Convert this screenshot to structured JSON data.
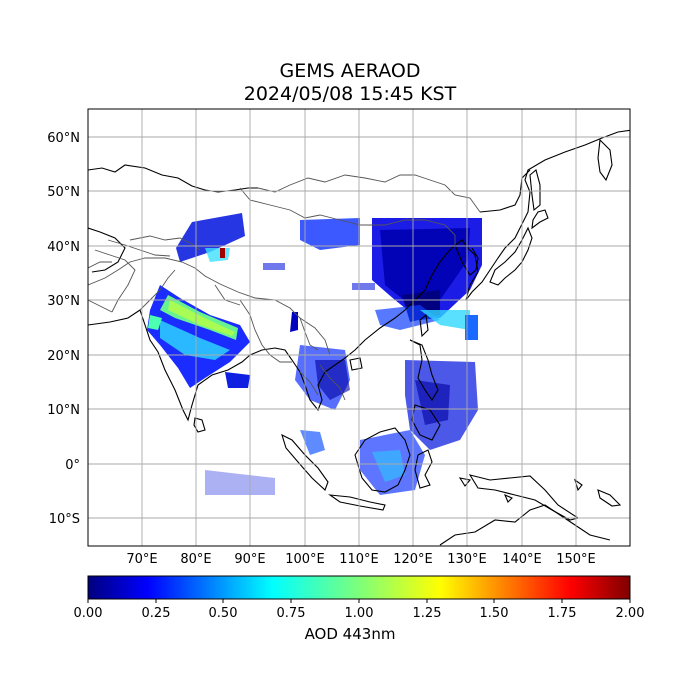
{
  "title_line1": "GEMS AERAOD",
  "title_line2": "2024/05/08 15:45 KST",
  "colorbar": {
    "label": "AOD 443nm",
    "ticks": [
      "0.00",
      "0.25",
      "0.50",
      "0.75",
      "1.00",
      "1.25",
      "1.50",
      "1.75",
      "2.00"
    ],
    "colormap": "jet",
    "range": [
      0,
      2
    ]
  },
  "map": {
    "lat_labels": [
      "60°N",
      "50°N",
      "40°N",
      "30°N",
      "20°N",
      "10°N",
      "0°",
      "10°S"
    ],
    "lon_labels": [
      "70°E",
      "80°E",
      "90°E",
      "100°E",
      "110°E",
      "120°E",
      "130°E",
      "140°E",
      "150°E"
    ],
    "lon_range": [
      60,
      160
    ],
    "lat_range": [
      -15,
      65
    ],
    "grid": true,
    "projection": "PlateCarree",
    "region": "East and South Asia"
  }
}
